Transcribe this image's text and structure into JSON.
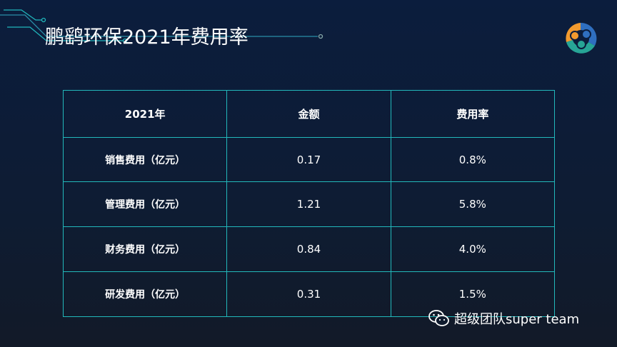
{
  "title": "鹏鹞环保2021年费用率",
  "table": {
    "headers": [
      "2021年",
      "金额",
      "费用率"
    ],
    "rows": [
      {
        "label": "销售费用（亿元）",
        "amount": "0.17",
        "rate": "0.8%"
      },
      {
        "label": "管理费用（亿元）",
        "amount": "1.21",
        "rate": "5.8%"
      },
      {
        "label": "财务费用（亿元）",
        "amount": "0.84",
        "rate": "4.0%"
      },
      {
        "label": "研发费用（亿元）",
        "amount": "0.31",
        "rate": "1.5%"
      }
    ]
  },
  "watermark": "超级团队super team",
  "colors": {
    "border": "#22b8bb",
    "accent": "#1fb5b5",
    "logo_orange": "#f29a2e",
    "logo_blue": "#2f6fc0",
    "logo_teal": "#27a596"
  }
}
